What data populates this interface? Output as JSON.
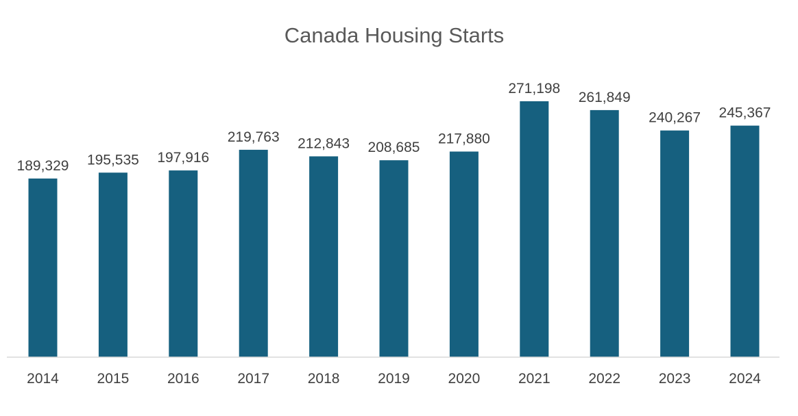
{
  "chart_data": {
    "type": "bar",
    "title": "Canada Housing Starts",
    "xlabel": "",
    "ylabel": "",
    "categories": [
      "2014",
      "2015",
      "2016",
      "2017",
      "2018",
      "2019",
      "2020",
      "2021",
      "2022",
      "2023",
      "2024"
    ],
    "values": [
      189329,
      195535,
      197916,
      219763,
      212843,
      208685,
      217880,
      271198,
      261849,
      240267,
      245367
    ],
    "data_labels": [
      "189,329",
      "195,535",
      "197,916",
      "219,763",
      "212,843",
      "208,685",
      "217,880",
      "271,198",
      "261,849",
      "240,267",
      "245,367"
    ],
    "ylim": [
      0,
      271198
    ],
    "grid": false,
    "legend": "none",
    "colors": {
      "bar": "#16607F",
      "axis": "#D9D9D9",
      "text": "#404040",
      "title": "#595959"
    }
  }
}
